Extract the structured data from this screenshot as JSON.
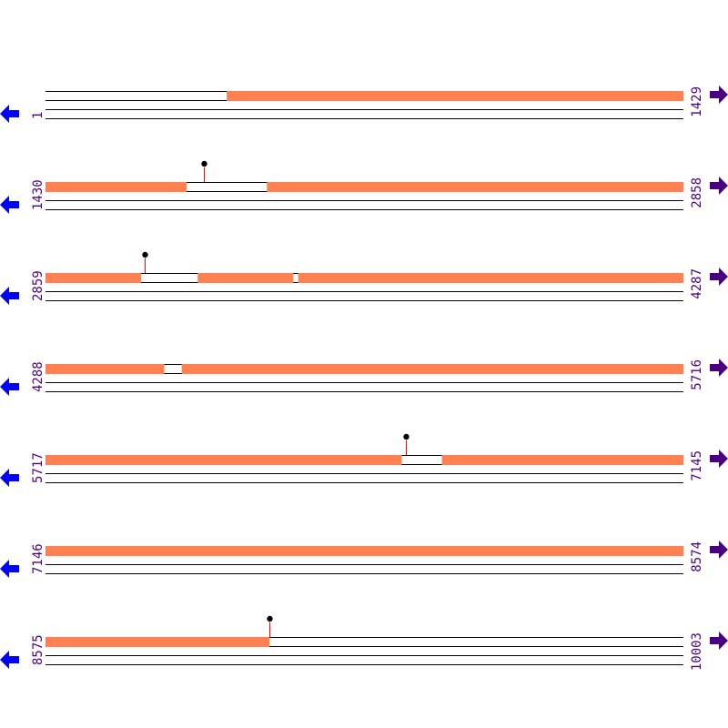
{
  "colors": {
    "coverage": "#ff8050",
    "line": "#000000",
    "stem": "#ff0000",
    "dot": "#000000",
    "label": "#4b0082",
    "reverse_arrow": "#0000ff",
    "forward_arrow": "#4b0082"
  },
  "icons": {
    "left": "arrow-left-icon",
    "right": "arrow-right-icon"
  },
  "rows": [
    {
      "start": 1,
      "end": 1429,
      "start_label": "1",
      "end_label": "1429",
      "covered": [
        [
          407,
          1429
        ]
      ],
      "markers": [],
      "track_end": 1429
    },
    {
      "start": 1430,
      "end": 2858,
      "start_label": "1430",
      "end_label": "2858",
      "covered": [
        [
          1430,
          1745
        ],
        [
          1926,
          2858
        ]
      ],
      "markers": [
        1785
      ],
      "track_end": 2858
    },
    {
      "start": 2859,
      "end": 4287,
      "start_label": "2859",
      "end_label": "4287",
      "covered": [
        [
          2859,
          3072
        ],
        [
          3200,
          3413
        ],
        [
          3425,
          4287
        ]
      ],
      "markers": [
        3081
      ],
      "track_end": 4287
    },
    {
      "start": 4288,
      "end": 5716,
      "start_label": "4288",
      "end_label": "5716",
      "covered": [
        [
          4288,
          4553
        ],
        [
          4593,
          5716
        ]
      ],
      "markers": [],
      "track_end": 5716
    },
    {
      "start": 5717,
      "end": 7145,
      "start_label": "5717",
      "end_label": "7145",
      "covered": [
        [
          5717,
          6514
        ],
        [
          6605,
          7145
        ]
      ],
      "markers": [
        6524
      ],
      "track_end": 7145
    },
    {
      "start": 7146,
      "end": 8574,
      "start_label": "7146",
      "end_label": "8574",
      "covered": [
        [
          7146,
          8574
        ]
      ],
      "markers": [],
      "track_end": 8574
    },
    {
      "start": 8575,
      "end": 10003,
      "start_label": "8575",
      "end_label": "10003",
      "covered": [
        [
          8575,
          9076
        ]
      ],
      "markers": [
        9076
      ],
      "track_end": 10003
    }
  ]
}
